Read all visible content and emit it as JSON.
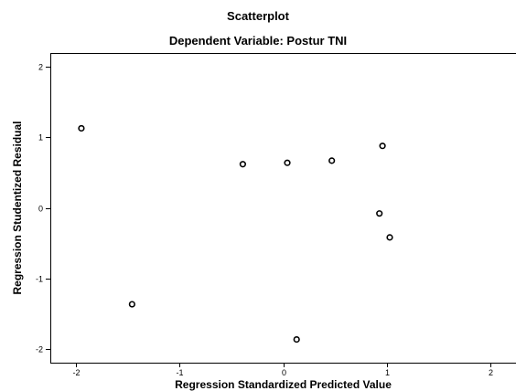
{
  "chart_data": {
    "type": "scatter",
    "title": "Scatterplot",
    "subtitle": "Dependent Variable: Postur TNI",
    "xlabel": "Regression Standardized Predicted Value",
    "ylabel": "Regression Studentized Residual",
    "xlim": [
      -2.25,
      2.25
    ],
    "ylim": [
      -2.2,
      2.2
    ],
    "xticks": [
      -2,
      -1,
      0,
      1,
      2
    ],
    "yticks": [
      -2,
      -1,
      0,
      1,
      2
    ],
    "xtick_labels": [
      "-2",
      "-1",
      "0",
      "1",
      "2"
    ],
    "ytick_labels": [
      "-2",
      "-1",
      "0",
      "1",
      "2"
    ],
    "grid": false,
    "points": [
      {
        "x": -1.95,
        "y": 1.13
      },
      {
        "x": -1.46,
        "y": -1.37
      },
      {
        "x": -0.39,
        "y": 0.62
      },
      {
        "x": 0.04,
        "y": 0.64
      },
      {
        "x": 0.13,
        "y": -1.87
      },
      {
        "x": 0.47,
        "y": 0.67
      },
      {
        "x": 0.93,
        "y": -0.08
      },
      {
        "x": 0.96,
        "y": 0.88
      },
      {
        "x": 1.03,
        "y": -0.42
      }
    ],
    "marker_color": "#000000"
  }
}
